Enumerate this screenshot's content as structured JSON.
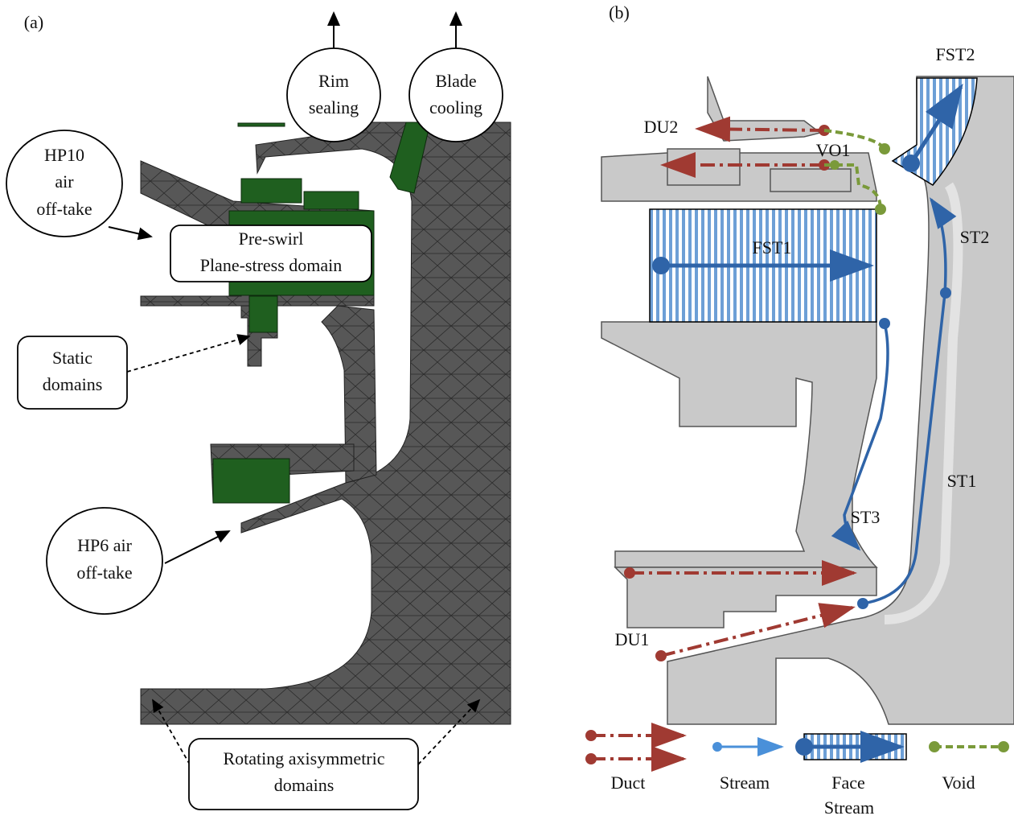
{
  "panel_a": {
    "label": "(a)",
    "callouts": [
      {
        "lines": [
          "Rim",
          "sealing"
        ]
      },
      {
        "lines": [
          "Blade",
          "cooling"
        ]
      },
      {
        "lines": [
          "HP10",
          "air",
          "off-take"
        ]
      },
      {
        "lines": [
          "Pre-swirl",
          "Plane-stress domain"
        ]
      },
      {
        "lines": [
          "Static",
          "domains"
        ]
      },
      {
        "lines": [
          "HP6 air",
          "off-take"
        ]
      },
      {
        "lines": [
          "Rotating axisymmetric",
          "domains"
        ]
      }
    ]
  },
  "panel_b": {
    "label": "(b)",
    "labels": [
      "DU2",
      "VO1",
      "FST2",
      "FST1",
      "ST2",
      "ST1",
      "ST3",
      "DU1"
    ],
    "legend": [
      {
        "lines": [
          "Duct"
        ]
      },
      {
        "lines": [
          "Stream"
        ]
      },
      {
        "lines": [
          "Face",
          "Stream"
        ]
      },
      {
        "lines": [
          "Void"
        ]
      }
    ]
  }
}
